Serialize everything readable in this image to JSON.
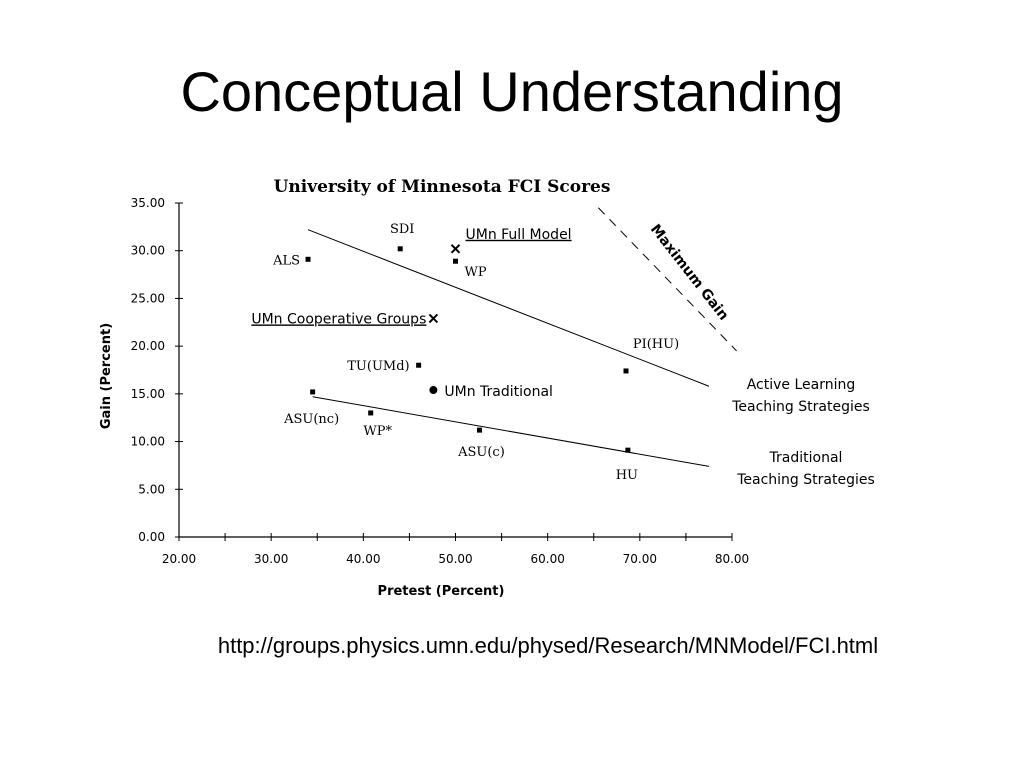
{
  "slide": {
    "title": "Conceptual Understanding",
    "url": "http://groups.physics.umn.edu/physed/Research/MNModel/FCI.html"
  },
  "chart_data": {
    "type": "scatter",
    "title": "University of Minnesota FCI Scores",
    "xlabel": "Pretest (Percent)",
    "ylabel": "Gain (Percent)",
    "xlim": [
      20,
      80
    ],
    "ylim": [
      0,
      35
    ],
    "xticks": [
      "20.00",
      "30.00",
      "40.00",
      "50.00",
      "60.00",
      "70.00",
      "80.00"
    ],
    "yticks": [
      "0.00",
      "5.00",
      "10.00",
      "15.00",
      "20.00",
      "25.00",
      "30.00",
      "35.00"
    ],
    "grid": false,
    "points": [
      {
        "label": "ALS",
        "x": 34.0,
        "y": 29.1,
        "marker": "square"
      },
      {
        "label": "SDI",
        "x": 44.0,
        "y": 30.2,
        "marker": "square"
      },
      {
        "label": "WP",
        "x": 50.0,
        "y": 28.9,
        "marker": "square"
      },
      {
        "label": "PI(HU)",
        "x": 68.5,
        "y": 17.4,
        "marker": "square"
      },
      {
        "label": "TU(UMd)",
        "x": 46.0,
        "y": 18.0,
        "marker": "square"
      },
      {
        "label": "ASU(nc)",
        "x": 34.5,
        "y": 15.2,
        "marker": "square"
      },
      {
        "label": "WP*",
        "x": 40.8,
        "y": 13.0,
        "marker": "square"
      },
      {
        "label": "ASU(c)",
        "x": 52.6,
        "y": 11.2,
        "marker": "square"
      },
      {
        "label": "HU",
        "x": 68.7,
        "y": 9.1,
        "marker": "square"
      },
      {
        "label": "UMn Full Model",
        "x": 50.0,
        "y": 30.2,
        "marker": "x"
      },
      {
        "label": "UMn Cooperative Groups",
        "x": 47.6,
        "y": 22.9,
        "marker": "x"
      },
      {
        "label": "UMn Traditional",
        "x": 47.6,
        "y": 15.4,
        "marker": "circle"
      }
    ],
    "fit_lines": [
      {
        "name": "Active Learning Teaching Strategies",
        "line1": "Active Learning",
        "line2": "Teaching Strategies",
        "x": [
          34.0,
          77.5
        ],
        "y": [
          32.2,
          15.8
        ]
      },
      {
        "name": "Traditional Teaching Strategies",
        "line1": "Traditional",
        "line2": "Teaching Strategies",
        "x": [
          34.5,
          77.5
        ],
        "y": [
          14.7,
          7.4
        ]
      }
    ],
    "max_gain": {
      "label": "Maximum Gain",
      "x": [
        65.5,
        80.5
      ],
      "y": [
        34.5,
        19.5
      ]
    }
  }
}
